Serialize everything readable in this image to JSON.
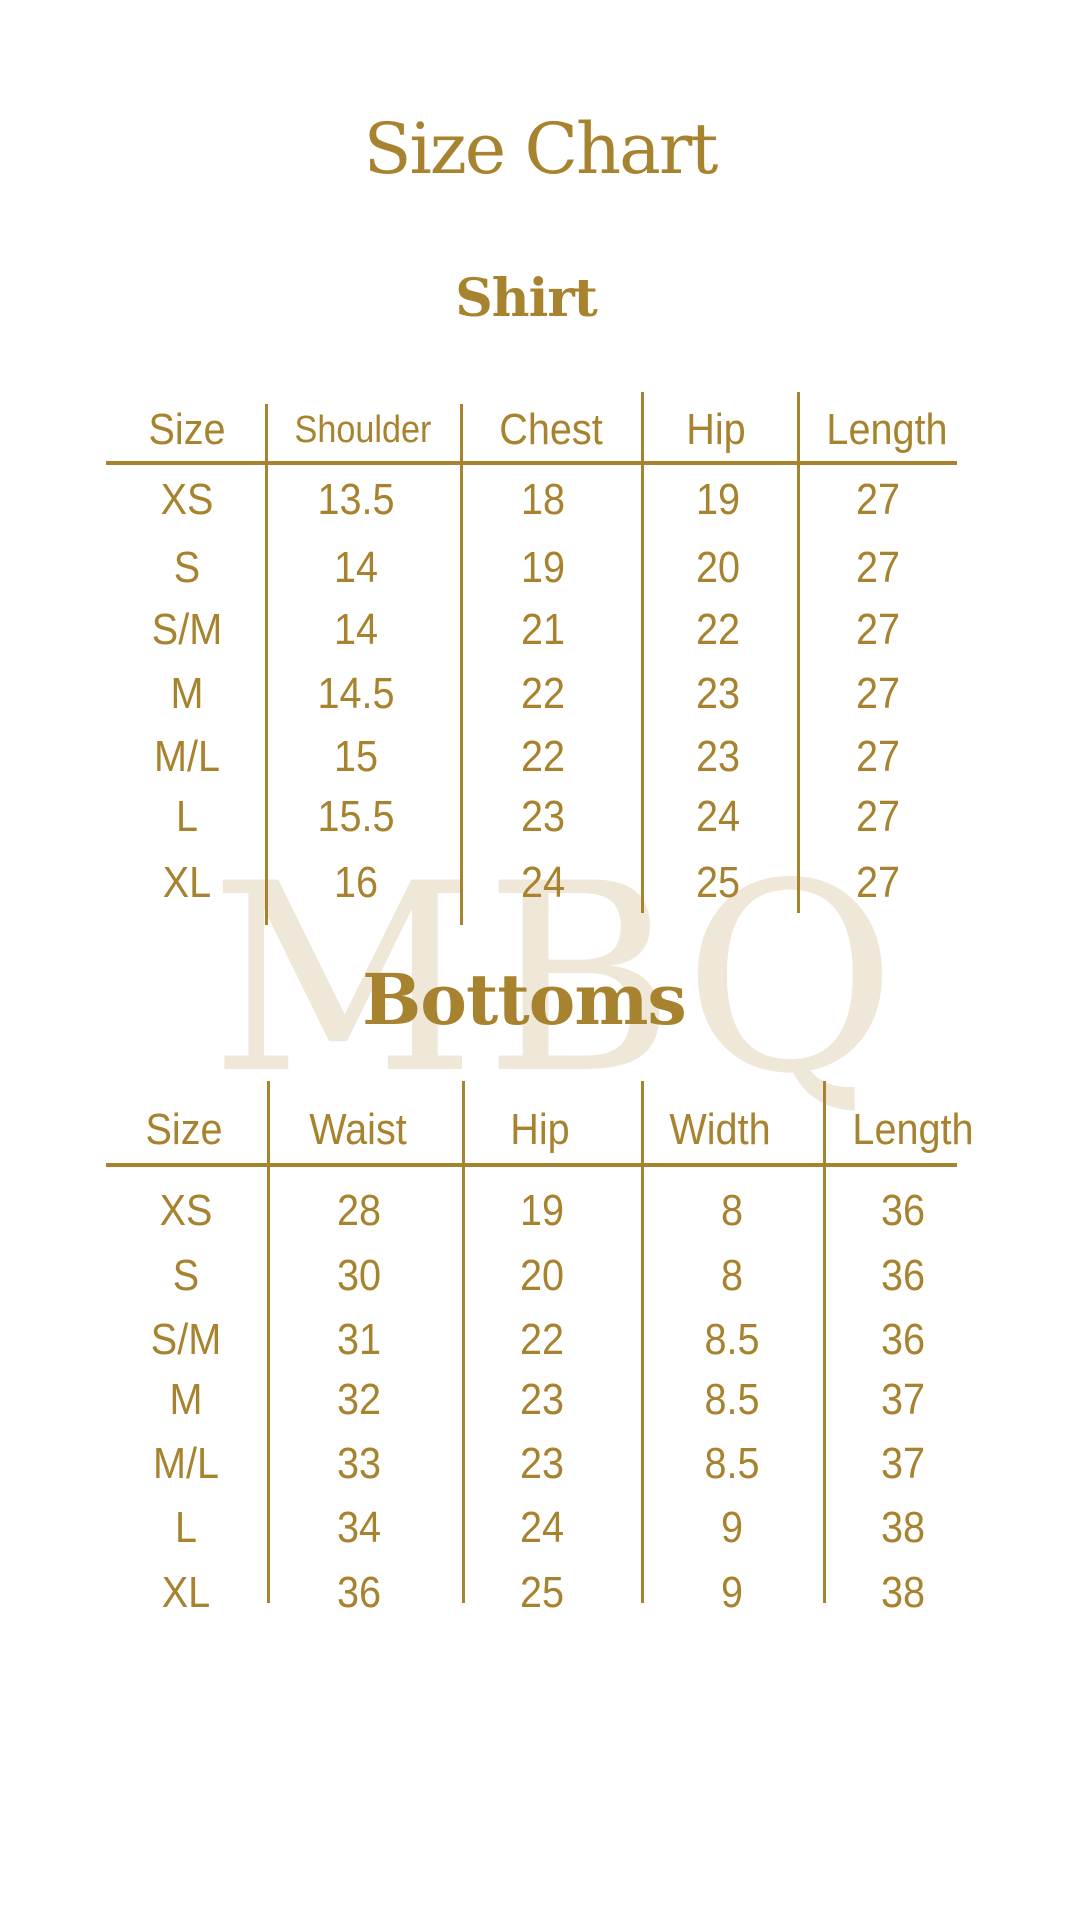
{
  "title": "Size Chart",
  "watermark": "MBQ",
  "accent_color": "#a8832f",
  "shirt": {
    "title": "Shirt",
    "columns": [
      "Size",
      "Shoulder",
      "Chest",
      "Hip",
      "Length"
    ],
    "rows": [
      [
        "XS",
        "13.5",
        "18",
        "19",
        "27"
      ],
      [
        "S",
        "14",
        "19",
        "20",
        "27"
      ],
      [
        "S/M",
        "14",
        "21",
        "22",
        "27"
      ],
      [
        "M",
        "14.5",
        "22",
        "23",
        "27"
      ],
      [
        "M/L",
        "15",
        "22",
        "23",
        "27"
      ],
      [
        "L",
        "15.5",
        "23",
        "24",
        "27"
      ],
      [
        "XL",
        "16",
        "24",
        "25",
        "27"
      ]
    ]
  },
  "bottoms": {
    "title": "Bottoms",
    "columns": [
      "Size",
      "Waist",
      "Hip",
      "Width",
      "Length"
    ],
    "rows": [
      [
        "XS",
        "28",
        "19",
        "8",
        "36"
      ],
      [
        "S",
        "30",
        "20",
        "8",
        "36"
      ],
      [
        "S/M",
        "31",
        "22",
        "8.5",
        "36"
      ],
      [
        "M",
        "32",
        "23",
        "8.5",
        "37"
      ],
      [
        "M/L",
        "33",
        "23",
        "8.5",
        "37"
      ],
      [
        "L",
        "34",
        "24",
        "9",
        "38"
      ],
      [
        "XL",
        "36",
        "25",
        "9",
        "38"
      ]
    ]
  }
}
